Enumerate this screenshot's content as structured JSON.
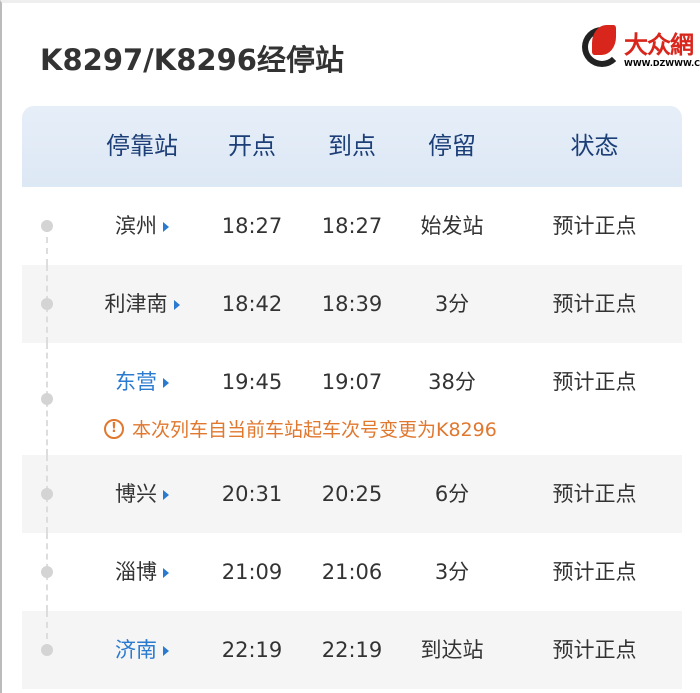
{
  "title": "K8297/K8296经停站",
  "logo": {
    "text": "大众網",
    "url": "WWW.DZWWW.COM"
  },
  "columns": [
    "停靠站",
    "开点",
    "到点",
    "停留",
    "状态"
  ],
  "rows": [
    {
      "station": "滨州",
      "depart": "18:27",
      "arrive": "18:27",
      "stay": "始发站",
      "status": "预计正点",
      "highlight": false
    },
    {
      "station": "利津南",
      "depart": "18:42",
      "arrive": "18:39",
      "stay": "3分",
      "status": "预计正点",
      "highlight": false
    },
    {
      "station": "东营",
      "depart": "19:45",
      "arrive": "19:07",
      "stay": "38分",
      "status": "预计正点",
      "highlight": true,
      "notice": "本次列车自当前车站起车次号变更为K8296"
    },
    {
      "station": "博兴",
      "depart": "20:31",
      "arrive": "20:25",
      "stay": "6分",
      "status": "预计正点",
      "highlight": false
    },
    {
      "station": "淄博",
      "depart": "21:09",
      "arrive": "21:06",
      "stay": "3分",
      "status": "预计正点",
      "highlight": false
    },
    {
      "station": "济南",
      "depart": "22:19",
      "arrive": "22:19",
      "stay": "到达站",
      "status": "预计正点",
      "highlight": true
    }
  ],
  "colors": {
    "header_text": "#1d3f77",
    "link": "#2a7ad0",
    "notice": "#e0782f"
  }
}
